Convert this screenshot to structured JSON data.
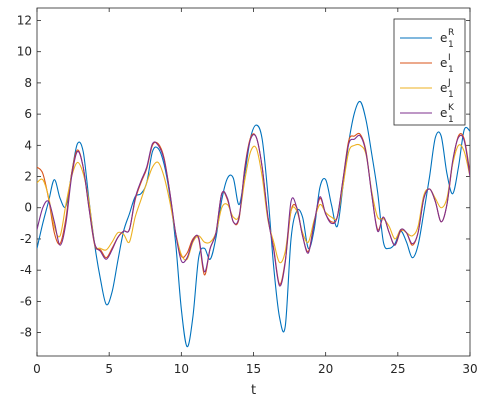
{
  "chart_data": {
    "type": "line",
    "xlabel": "t",
    "ylabel": "",
    "xlim": [
      0,
      30
    ],
    "ylim": [
      -9.5,
      12.8
    ],
    "xticks": [
      0,
      5,
      10,
      15,
      20,
      25,
      30
    ],
    "yticks": [
      -8,
      -6,
      -4,
      -2,
      0,
      2,
      4,
      6,
      8,
      10,
      12
    ],
    "grid": false,
    "legend_position": "top-right",
    "series": [
      {
        "name": "e1R",
        "legend": {
          "base": "e",
          "sup": "R",
          "sub": "1"
        },
        "color": "#0072BD",
        "points": [
          [
            0,
            -2.6
          ],
          [
            0.4,
            -1.0
          ],
          [
            0.8,
            0.4
          ],
          [
            1.2,
            1.8
          ],
          [
            1.6,
            0.6
          ],
          [
            2.0,
            0.1
          ],
          [
            2.4,
            2.2
          ],
          [
            2.8,
            4.1
          ],
          [
            3.2,
            3.6
          ],
          [
            3.6,
            0.5
          ],
          [
            4.0,
            -2.4
          ],
          [
            4.4,
            -4.6
          ],
          [
            4.8,
            -6.2
          ],
          [
            5.2,
            -5.4
          ],
          [
            5.6,
            -3.4
          ],
          [
            6.0,
            -1.5
          ],
          [
            6.4,
            -0.4
          ],
          [
            6.8,
            0.7
          ],
          [
            7.2,
            0.9
          ],
          [
            7.6,
            1.6
          ],
          [
            8.0,
            3.6
          ],
          [
            8.4,
            3.8
          ],
          [
            8.8,
            2.8
          ],
          [
            9.2,
            0.8
          ],
          [
            9.6,
            -2.2
          ],
          [
            10.0,
            -6.5
          ],
          [
            10.4,
            -8.9
          ],
          [
            10.8,
            -7.0
          ],
          [
            11.2,
            -3.2
          ],
          [
            11.6,
            -2.6
          ],
          [
            12.0,
            -3.3
          ],
          [
            12.4,
            -1.9
          ],
          [
            12.8,
            0.5
          ],
          [
            13.2,
            1.9
          ],
          [
            13.6,
            1.9
          ],
          [
            14.0,
            0.2
          ],
          [
            14.4,
            2.2
          ],
          [
            14.8,
            4.5
          ],
          [
            15.2,
            5.3
          ],
          [
            15.6,
            4.4
          ],
          [
            16.0,
            0.8
          ],
          [
            16.4,
            -3.8
          ],
          [
            16.8,
            -7.0
          ],
          [
            17.2,
            -7.6
          ],
          [
            17.6,
            -2.0
          ],
          [
            18.0,
            -0.2
          ],
          [
            18.4,
            -0.6
          ],
          [
            18.8,
            -2.6
          ],
          [
            19.2,
            -1.4
          ],
          [
            19.6,
            1.3
          ],
          [
            20.0,
            1.8
          ],
          [
            20.4,
            0.2
          ],
          [
            20.8,
            -1.2
          ],
          [
            21.2,
            1.4
          ],
          [
            21.6,
            4.2
          ],
          [
            22.0,
            6.1
          ],
          [
            22.4,
            6.8
          ],
          [
            22.8,
            5.6
          ],
          [
            23.2,
            3.4
          ],
          [
            23.6,
            1.0
          ],
          [
            24.0,
            -2.2
          ],
          [
            24.4,
            -2.6
          ],
          [
            24.8,
            -2.3
          ],
          [
            25.2,
            -1.5
          ],
          [
            25.6,
            -2.2
          ],
          [
            26.0,
            -3.2
          ],
          [
            26.4,
            -2.4
          ],
          [
            26.8,
            -0.3
          ],
          [
            27.2,
            2.0
          ],
          [
            27.6,
            4.5
          ],
          [
            28.0,
            4.6
          ],
          [
            28.4,
            2.2
          ],
          [
            28.8,
            0.9
          ],
          [
            29.2,
            2.6
          ],
          [
            29.6,
            5.0
          ],
          [
            30.0,
            4.9
          ]
        ]
      },
      {
        "name": "e1I",
        "legend": {
          "base": "e",
          "sup": "I",
          "sub": "1"
        },
        "color": "#D95319",
        "points": [
          [
            0,
            2.6
          ],
          [
            0.4,
            2.2
          ],
          [
            0.8,
            0.6
          ],
          [
            1.2,
            -1.6
          ],
          [
            1.6,
            -2.3
          ],
          [
            2.0,
            -0.7
          ],
          [
            2.4,
            2.2
          ],
          [
            2.8,
            3.7
          ],
          [
            3.2,
            2.6
          ],
          [
            3.6,
            0.0
          ],
          [
            4.0,
            -2.4
          ],
          [
            4.4,
            -2.7
          ],
          [
            4.8,
            -3.2
          ],
          [
            5.2,
            -2.6
          ],
          [
            5.6,
            -1.9
          ],
          [
            6.0,
            -1.5
          ],
          [
            6.4,
            -1.4
          ],
          [
            6.8,
            0.5
          ],
          [
            7.2,
            1.6
          ],
          [
            7.6,
            2.5
          ],
          [
            8.0,
            4.0
          ],
          [
            8.4,
            4.1
          ],
          [
            8.8,
            3.2
          ],
          [
            9.2,
            1.0
          ],
          [
            9.6,
            -1.6
          ],
          [
            10.0,
            -3.1
          ],
          [
            10.4,
            -2.9
          ],
          [
            10.8,
            -2.0
          ],
          [
            11.2,
            -2.0
          ],
          [
            11.6,
            -4.3
          ],
          [
            12.0,
            -2.6
          ],
          [
            12.4,
            -1.6
          ],
          [
            12.8,
            0.9
          ],
          [
            13.2,
            0.5
          ],
          [
            13.6,
            -0.9
          ],
          [
            14.0,
            -0.7
          ],
          [
            14.4,
            2.6
          ],
          [
            14.8,
            4.5
          ],
          [
            15.2,
            4.5
          ],
          [
            15.6,
            2.6
          ],
          [
            16.0,
            -0.6
          ],
          [
            16.4,
            -2.6
          ],
          [
            16.8,
            -4.9
          ],
          [
            17.2,
            -3.4
          ],
          [
            17.6,
            -0.2
          ],
          [
            18.0,
            0.0
          ],
          [
            18.4,
            -1.8
          ],
          [
            18.8,
            -2.8
          ],
          [
            19.2,
            -1.0
          ],
          [
            19.6,
            0.6
          ],
          [
            20.0,
            -0.4
          ],
          [
            20.4,
            -0.9
          ],
          [
            20.8,
            -0.6
          ],
          [
            21.2,
            1.8
          ],
          [
            21.6,
            4.3
          ],
          [
            22.0,
            4.6
          ],
          [
            22.4,
            4.7
          ],
          [
            22.8,
            3.6
          ],
          [
            23.2,
            0.8
          ],
          [
            23.6,
            -1.4
          ],
          [
            24.0,
            -0.6
          ],
          [
            24.4,
            -1.6
          ],
          [
            24.8,
            -2.4
          ],
          [
            25.2,
            -1.5
          ],
          [
            25.6,
            -1.6
          ],
          [
            26.0,
            -2.4
          ],
          [
            26.4,
            -1.6
          ],
          [
            26.8,
            0.6
          ],
          [
            27.2,
            1.2
          ],
          [
            27.6,
            0.4
          ],
          [
            28.0,
            -0.9
          ],
          [
            28.4,
            0.2
          ],
          [
            28.8,
            2.9
          ],
          [
            29.2,
            4.6
          ],
          [
            29.6,
            4.4
          ],
          [
            30.0,
            2.2
          ]
        ]
      },
      {
        "name": "e1J",
        "legend": {
          "base": "e",
          "sup": "J",
          "sub": "1"
        },
        "color": "#EDB120",
        "points": [
          [
            0,
            1.6
          ],
          [
            0.4,
            1.8
          ],
          [
            0.8,
            0.7
          ],
          [
            1.2,
            -1.2
          ],
          [
            1.6,
            -1.8
          ],
          [
            2.0,
            0.2
          ],
          [
            2.4,
            2.0
          ],
          [
            2.8,
            2.9
          ],
          [
            3.2,
            2.2
          ],
          [
            3.6,
            0.4
          ],
          [
            4.0,
            -2.3
          ],
          [
            4.4,
            -2.6
          ],
          [
            4.8,
            -2.7
          ],
          [
            5.2,
            -2.2
          ],
          [
            5.6,
            -1.6
          ],
          [
            6.0,
            -1.7
          ],
          [
            6.4,
            -2.2
          ],
          [
            6.8,
            -0.6
          ],
          [
            7.2,
            0.5
          ],
          [
            7.6,
            1.6
          ],
          [
            8.0,
            2.6
          ],
          [
            8.4,
            2.9
          ],
          [
            8.8,
            2.0
          ],
          [
            9.2,
            0.4
          ],
          [
            9.6,
            -1.6
          ],
          [
            10.0,
            -3.0
          ],
          [
            10.4,
            -3.3
          ],
          [
            10.8,
            -2.2
          ],
          [
            11.2,
            -1.8
          ],
          [
            11.6,
            -2.2
          ],
          [
            12.0,
            -2.2
          ],
          [
            12.4,
            -1.6
          ],
          [
            12.8,
            0.0
          ],
          [
            13.2,
            0.2
          ],
          [
            13.6,
            -0.6
          ],
          [
            14.0,
            -0.5
          ],
          [
            14.4,
            1.8
          ],
          [
            14.8,
            3.6
          ],
          [
            15.2,
            3.8
          ],
          [
            15.6,
            2.0
          ],
          [
            16.0,
            -0.8
          ],
          [
            16.4,
            -2.2
          ],
          [
            16.8,
            -3.5
          ],
          [
            17.2,
            -2.8
          ],
          [
            17.6,
            -0.2
          ],
          [
            18.0,
            -0.2
          ],
          [
            18.4,
            -1.6
          ],
          [
            18.8,
            -2.2
          ],
          [
            19.2,
            -0.8
          ],
          [
            19.6,
            0.2
          ],
          [
            20.0,
            -0.3
          ],
          [
            20.4,
            -0.6
          ],
          [
            20.8,
            -0.6
          ],
          [
            21.2,
            1.4
          ],
          [
            21.6,
            3.6
          ],
          [
            22.0,
            4.0
          ],
          [
            22.4,
            4.0
          ],
          [
            22.8,
            3.4
          ],
          [
            23.2,
            1.0
          ],
          [
            23.6,
            -0.6
          ],
          [
            24.0,
            -0.7
          ],
          [
            24.4,
            -1.2
          ],
          [
            24.8,
            -2.0
          ],
          [
            25.2,
            -1.4
          ],
          [
            25.6,
            -1.6
          ],
          [
            26.0,
            -1.8
          ],
          [
            26.4,
            -1.2
          ],
          [
            26.8,
            0.8
          ],
          [
            27.2,
            1.2
          ],
          [
            27.6,
            0.6
          ],
          [
            28.0,
            0.0
          ],
          [
            28.4,
            0.6
          ],
          [
            28.8,
            2.8
          ],
          [
            29.2,
            4.0
          ],
          [
            29.6,
            3.6
          ],
          [
            30.0,
            2.0
          ]
        ]
      },
      {
        "name": "e1K",
        "legend": {
          "base": "e",
          "sup": "K",
          "sub": "1"
        },
        "color": "#7E2F8E",
        "points": [
          [
            0,
            -1.4
          ],
          [
            0.4,
            0.0
          ],
          [
            0.8,
            0.4
          ],
          [
            1.2,
            -0.9
          ],
          [
            1.6,
            -2.4
          ],
          [
            2.0,
            -1.0
          ],
          [
            2.4,
            2.0
          ],
          [
            2.8,
            3.6
          ],
          [
            3.2,
            2.6
          ],
          [
            3.6,
            0.0
          ],
          [
            4.0,
            -2.3
          ],
          [
            4.4,
            -2.8
          ],
          [
            4.8,
            -3.3
          ],
          [
            5.2,
            -2.7
          ],
          [
            5.6,
            -1.9
          ],
          [
            6.0,
            -1.5
          ],
          [
            6.4,
            -1.4
          ],
          [
            6.8,
            0.6
          ],
          [
            7.2,
            1.7
          ],
          [
            7.6,
            2.6
          ],
          [
            8.0,
            4.1
          ],
          [
            8.4,
            4.0
          ],
          [
            8.8,
            3.1
          ],
          [
            9.2,
            1.0
          ],
          [
            9.6,
            -1.6
          ],
          [
            10.0,
            -3.4
          ],
          [
            10.4,
            -3.2
          ],
          [
            10.8,
            -2.1
          ],
          [
            11.2,
            -1.9
          ],
          [
            11.6,
            -4.1
          ],
          [
            12.0,
            -2.6
          ],
          [
            12.4,
            -1.6
          ],
          [
            12.8,
            0.9
          ],
          [
            13.2,
            0.6
          ],
          [
            13.6,
            -0.9
          ],
          [
            14.0,
            -0.6
          ],
          [
            14.4,
            2.5
          ],
          [
            14.8,
            4.4
          ],
          [
            15.2,
            4.5
          ],
          [
            15.6,
            2.6
          ],
          [
            16.0,
            -0.6
          ],
          [
            16.4,
            -2.7
          ],
          [
            16.8,
            -5.0
          ],
          [
            17.2,
            -3.5
          ],
          [
            17.6,
            0.4
          ],
          [
            18.0,
            0.0
          ],
          [
            18.4,
            -1.8
          ],
          [
            18.8,
            -2.9
          ],
          [
            19.2,
            -1.0
          ],
          [
            19.6,
            0.7
          ],
          [
            20.0,
            -0.4
          ],
          [
            20.4,
            -1.0
          ],
          [
            20.8,
            -0.6
          ],
          [
            21.2,
            1.8
          ],
          [
            21.6,
            4.1
          ],
          [
            22.0,
            4.4
          ],
          [
            22.4,
            4.6
          ],
          [
            22.8,
            3.5
          ],
          [
            23.2,
            0.8
          ],
          [
            23.6,
            -1.5
          ],
          [
            24.0,
            -0.6
          ],
          [
            24.4,
            -1.6
          ],
          [
            24.8,
            -2.4
          ],
          [
            25.2,
            -1.4
          ],
          [
            25.6,
            -1.6
          ],
          [
            26.0,
            -2.3
          ],
          [
            26.4,
            -1.6
          ],
          [
            26.8,
            0.6
          ],
          [
            27.2,
            1.2
          ],
          [
            27.6,
            0.4
          ],
          [
            28.0,
            -0.9
          ],
          [
            28.4,
            0.2
          ],
          [
            28.8,
            3.0
          ],
          [
            29.2,
            4.5
          ],
          [
            29.6,
            4.3
          ],
          [
            30.0,
            2.0
          ]
        ]
      }
    ]
  }
}
